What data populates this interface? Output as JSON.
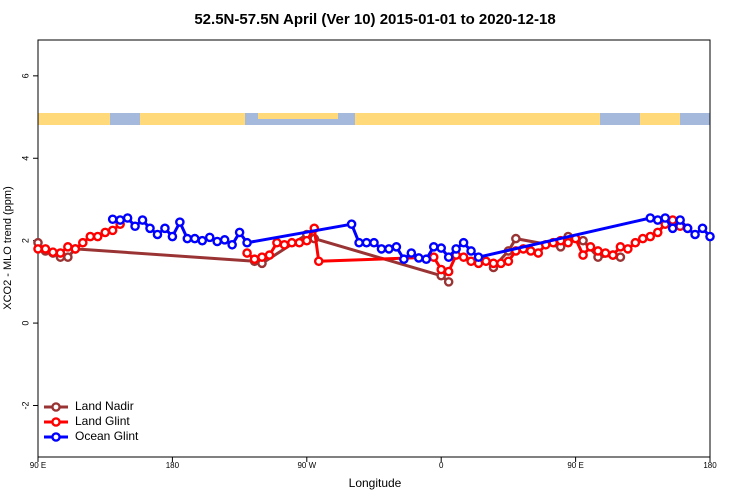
{
  "chart_data": {
    "type": "line",
    "title": "52.5N-57.5N April (Ver 10)   2015-01-01 to 2020-12-18",
    "x_label": "Longitude",
    "y_label": "XCO2 - MLO trend (ppm)",
    "xlim": [
      90,
      540
    ],
    "ylim": [
      -3.25,
      6.87
    ],
    "xticks": [
      {
        "value": 90,
        "label": "90 E"
      },
      180,
      {
        "value": 270,
        "label": "90 W"
      },
      {
        "value": 360,
        "label": "0"
      },
      {
        "value": 450,
        "label": "90 E"
      },
      {
        "value": 540,
        "label": "180"
      }
    ],
    "yticks": [
      -2,
      0,
      2,
      4,
      6
    ],
    "legend": "bottom-left",
    "series": [
      {
        "name": "Land Nadir",
        "color": "#9a3434",
        "x": [
          90,
          95,
          100,
          105,
          110,
          115,
          235,
          240,
          270,
          275,
          360,
          365,
          370,
          395,
          405,
          410,
          440,
          445,
          455,
          465,
          475,
          480
        ],
        "values": [
          1.95,
          1.75,
          1.7,
          1.6,
          1.6,
          1.8,
          1.5,
          1.45,
          2.15,
          2.05,
          1.15,
          1.0,
          null,
          1.35,
          1.75,
          2.05,
          1.85,
          2.1,
          2.0,
          1.6,
          1.65,
          1.6
        ]
      },
      {
        "name": "Land Glint",
        "color": "#ff0000",
        "x": [
          90,
          95,
          100,
          105,
          110,
          115,
          120,
          125,
          130,
          135,
          140,
          145,
          200,
          230,
          235,
          240,
          245,
          250,
          255,
          260,
          265,
          270,
          275,
          278,
          355,
          360,
          365,
          370,
          375,
          380,
          385,
          390,
          395,
          400,
          405,
          410,
          415,
          420,
          425,
          430,
          435,
          440,
          445,
          450,
          455,
          460,
          465,
          470,
          475,
          480,
          485,
          490,
          495,
          500,
          505,
          510,
          515,
          520,
          525
        ],
        "values": [
          1.8,
          1.8,
          1.72,
          1.7,
          1.85,
          1.8,
          1.95,
          2.1,
          2.1,
          2.2,
          2.25,
          2.4,
          null,
          1.7,
          1.55,
          1.6,
          1.65,
          1.95,
          1.9,
          1.95,
          1.95,
          2.0,
          2.3,
          1.5,
          1.6,
          1.3,
          1.25,
          1.65,
          1.6,
          1.5,
          1.45,
          1.5,
          1.45,
          1.45,
          1.5,
          1.75,
          1.8,
          1.75,
          1.7,
          1.9,
          1.95,
          2.0,
          1.95,
          2.05,
          1.65,
          1.85,
          1.75,
          1.7,
          1.65,
          1.85,
          1.8,
          1.95,
          2.05,
          2.1,
          2.2,
          2.4,
          2.5,
          2.35,
          2.3
        ]
      },
      {
        "name": "Ocean Glint",
        "color": "#0000ff",
        "x": [
          140,
          145,
          150,
          155,
          160,
          165,
          170,
          175,
          180,
          185,
          190,
          195,
          200,
          205,
          210,
          215,
          220,
          225,
          230,
          300,
          305,
          310,
          315,
          320,
          325,
          330,
          335,
          340,
          345,
          350,
          355,
          360,
          365,
          370,
          375,
          380,
          385,
          500,
          505,
          510,
          515,
          520,
          525,
          530,
          535,
          540
        ],
        "values": [
          2.52,
          2.5,
          2.55,
          2.35,
          2.5,
          2.3,
          2.15,
          2.3,
          2.1,
          2.45,
          2.05,
          2.05,
          2.0,
          2.08,
          1.98,
          2.02,
          1.9,
          2.2,
          1.95,
          2.4,
          1.95,
          1.95,
          1.95,
          1.8,
          1.8,
          1.85,
          1.55,
          1.7,
          1.58,
          1.55,
          1.85,
          1.82,
          1.6,
          1.8,
          1.95,
          1.75,
          1.6,
          2.55,
          2.5,
          2.55,
          2.3,
          2.5,
          2.3,
          2.15,
          2.3,
          2.1
        ]
      }
    ]
  }
}
